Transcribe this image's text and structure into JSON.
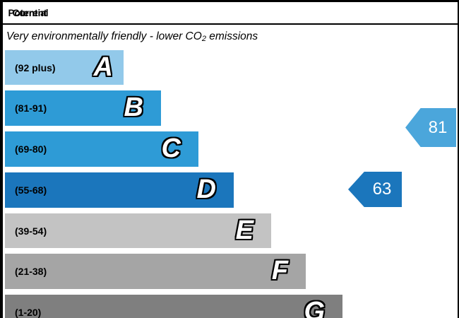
{
  "header": {
    "current_label": "Current",
    "potential_label": "Potential"
  },
  "title": {
    "pre": "Very environmentally friendly - lower CO",
    "sub": "2",
    "post": " emissions"
  },
  "chart_data": {
    "type": "bar",
    "chart_kind": "epc-environmental-impact-co2-rating",
    "title": "Very environmentally friendly - lower CO2 emissions",
    "columns": [
      "Current",
      "Potential"
    ],
    "legend_position": "none",
    "bands": [
      {
        "letter": "A",
        "range": "(92 plus)",
        "score_min": 92,
        "score_max": 100,
        "color": "#92c9ea",
        "bar_length_frac": 0.35
      },
      {
        "letter": "B",
        "range": "(81-91)",
        "score_min": 81,
        "score_max": 91,
        "color": "#2e9bd6",
        "bar_length_frac": 0.46
      },
      {
        "letter": "C",
        "range": "(69-80)",
        "score_min": 69,
        "score_max": 80,
        "color": "#2e9bd6",
        "bar_length_frac": 0.57
      },
      {
        "letter": "D",
        "range": "(55-68)",
        "score_min": 55,
        "score_max": 68,
        "color": "#1b76bc",
        "bar_length_frac": 0.67
      },
      {
        "letter": "E",
        "range": "(39-54)",
        "score_min": 39,
        "score_max": 54,
        "color": "#c3c3c3",
        "bar_length_frac": 0.78
      },
      {
        "letter": "F",
        "range": "(21-38)",
        "score_min": 21,
        "score_max": 38,
        "color": "#a5a5a5",
        "bar_length_frac": 0.89
      },
      {
        "letter": "G",
        "range": "(1-20)",
        "score_min": 1,
        "score_max": 20,
        "color": "#7f7f7f",
        "bar_length_frac": 1.0
      }
    ],
    "markers": {
      "current": {
        "label": "Current",
        "value": "63",
        "band": "D",
        "color": "#1b76bc"
      },
      "potential": {
        "label": "Potential",
        "value": "81",
        "band": "B",
        "color": "#4ba6db"
      }
    }
  }
}
